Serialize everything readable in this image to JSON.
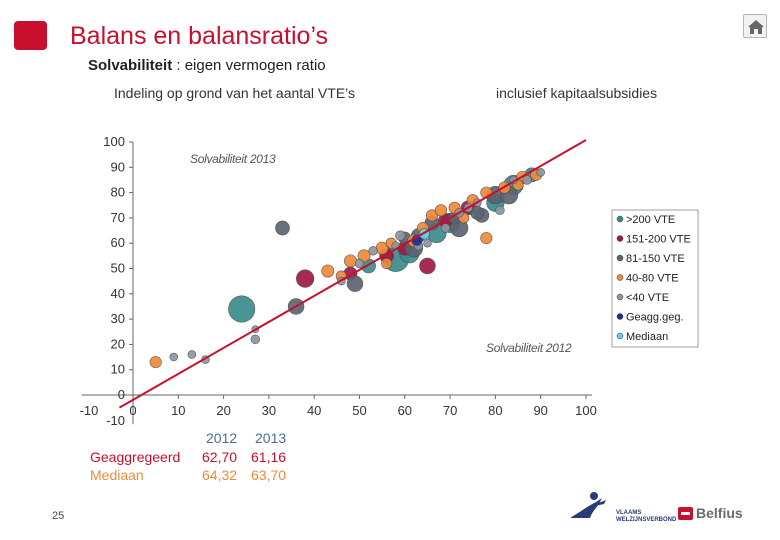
{
  "header": {
    "title": "Balans en balansratio’s",
    "subtitle_bold": "Solvabiliteit",
    "subtitle_rest": ": eigen vermogen ratio",
    "grouping_text": "Indeling op grond van het aantal VTE’s",
    "capital_text": "inclusief  kapitaalsubsidies"
  },
  "colors": {
    "accent": "#c8102e",
    "orange": "#ef8a3a",
    "blue_dark": "#2a3b7a"
  },
  "icons": {
    "home": "home-icon",
    "brand": "brand-square"
  },
  "chart_data": {
    "type": "scatter",
    "xlabel": "",
    "ylabel": "",
    "xlim": [
      -10,
      100
    ],
    "ylim": [
      -10,
      100
    ],
    "x_ticks": [
      -10,
      0,
      10,
      20,
      30,
      40,
      50,
      60,
      70,
      80,
      90,
      100
    ],
    "y_ticks": [
      100,
      90,
      80,
      70,
      60,
      50,
      40,
      30,
      20,
      10,
      0,
      -10
    ],
    "x_axis_label_text": "Solvabiliteit 2012",
    "y_axis_label_text": "Solvabiliteit 2013",
    "reference_line": {
      "from": [
        0,
        0
      ],
      "to": [
        100,
        100
      ],
      "color": "#c8102e"
    },
    "grid": false,
    "legend_position": "right",
    "legend": [
      {
        "label": ">200 VTE",
        "color": "#3a8c8c"
      },
      {
        "label": "151-200 VTE",
        "color": "#9e1a48"
      },
      {
        "label": "81-150 VTE",
        "color": "#5b6470"
      },
      {
        "label": "40-80 VTE",
        "color": "#ef8a3a"
      },
      {
        "label": "<40 VTE",
        "color": "#8e969e"
      },
      {
        "label": "Geagg.geg.",
        "color": "#1c2f9c"
      },
      {
        "label": "Mediaan",
        "color": "#5fd3e8"
      }
    ],
    "series": [
      {
        "name": ">200 VTE",
        "color": "#3a8c8c",
        "points": [
          [
            24,
            34,
            3
          ],
          [
            58,
            54,
            3
          ],
          [
            61,
            56,
            2.2
          ],
          [
            70,
            68,
            2.2
          ],
          [
            67,
            64,
            2.2
          ],
          [
            84,
            83,
            2.2
          ],
          [
            80,
            76,
            2
          ],
          [
            52,
            51,
            1.6
          ],
          [
            88,
            87,
            1.6
          ]
        ]
      },
      {
        "name": "151-200 VTE",
        "color": "#9e1a48",
        "points": [
          [
            38,
            46,
            2
          ],
          [
            65,
            51,
            1.8
          ],
          [
            69,
            69,
            1.6
          ],
          [
            74,
            74,
            1.6
          ],
          [
            56,
            55,
            1.6
          ],
          [
            60,
            58,
            1.6
          ],
          [
            48,
            48,
            1.5
          ]
        ]
      },
      {
        "name": "81-150 VTE",
        "color": "#5b6470",
        "points": [
          [
            33,
            66,
            1.6
          ],
          [
            36,
            35,
            1.8
          ],
          [
            49,
            44,
            1.8
          ],
          [
            62,
            58,
            2
          ],
          [
            72,
            66,
            2
          ],
          [
            80,
            79,
            2
          ],
          [
            83,
            79,
            2
          ],
          [
            77,
            71,
            1.6
          ],
          [
            63,
            63,
            1.6
          ],
          [
            66,
            68,
            1.6
          ],
          [
            76,
            72,
            1.5
          ],
          [
            60,
            62,
            1.4
          ],
          [
            71,
            70,
            1.4
          ]
        ]
      },
      {
        "name": "40-80 VTE",
        "color": "#ef8a3a",
        "points": [
          [
            5,
            13,
            1.3
          ],
          [
            43,
            49,
            1.4
          ],
          [
            48,
            53,
            1.4
          ],
          [
            51,
            55,
            1.4
          ],
          [
            55,
            58,
            1.4
          ],
          [
            62,
            61,
            1.4
          ],
          [
            64,
            66,
            1.3
          ],
          [
            66,
            71,
            1.3
          ],
          [
            71,
            74,
            1.3
          ],
          [
            75,
            77,
            1.3
          ],
          [
            78,
            80,
            1.3
          ],
          [
            82,
            82,
            1.3
          ],
          [
            86,
            86,
            1.4
          ],
          [
            89,
            87,
            1.3
          ],
          [
            78,
            62,
            1.3
          ],
          [
            46,
            47,
            1.2
          ],
          [
            68,
            73,
            1.3
          ],
          [
            73,
            70,
            1.2
          ],
          [
            85,
            83,
            1.2
          ],
          [
            56,
            52,
            1.2
          ],
          [
            57,
            60,
            1.2
          ]
        ]
      },
      {
        "name": "<40 VTE",
        "color": "#8e969e",
        "points": [
          [
            9,
            15,
            0.9
          ],
          [
            13,
            16,
            0.9
          ],
          [
            16,
            14,
            0.9
          ],
          [
            27,
            26,
            0.8
          ],
          [
            27,
            22,
            1
          ],
          [
            46,
            45,
            0.9
          ],
          [
            50,
            52,
            1
          ],
          [
            53,
            57,
            1
          ],
          [
            58,
            59,
            0.9
          ],
          [
            59,
            63,
            1.1
          ],
          [
            63,
            59,
            1
          ],
          [
            65,
            60,
            0.9
          ],
          [
            69,
            66,
            1
          ],
          [
            72,
            72,
            1
          ],
          [
            74,
            74,
            1
          ],
          [
            81,
            73,
            1
          ],
          [
            87,
            85,
            1
          ],
          [
            90,
            88,
            0.9
          ],
          [
            84,
            85,
            0.9
          ],
          [
            76,
            76,
            0.9
          ]
        ]
      },
      {
        "name": "Geagg.geg.",
        "color": "#1c2f9c",
        "points": [
          [
            62.7,
            61.16,
            1.2
          ]
        ]
      },
      {
        "name": "Mediaan",
        "color": "#5fd3e8",
        "points": [
          [
            64.32,
            63.7,
            1.2
          ]
        ]
      }
    ]
  },
  "stats": {
    "headers": [
      "2012",
      "2013"
    ],
    "rows": [
      {
        "label": "Geaggregeerd",
        "v2012": "62,70",
        "v2013": "61,16"
      },
      {
        "label": "Mediaan",
        "v2012": "64,32",
        "v2013": "63,70"
      }
    ]
  },
  "footer": {
    "page_number": "25",
    "vlaams_text": "VLAAMS WELZIJNSVERBOND",
    "belfius_text": "Belfius"
  }
}
